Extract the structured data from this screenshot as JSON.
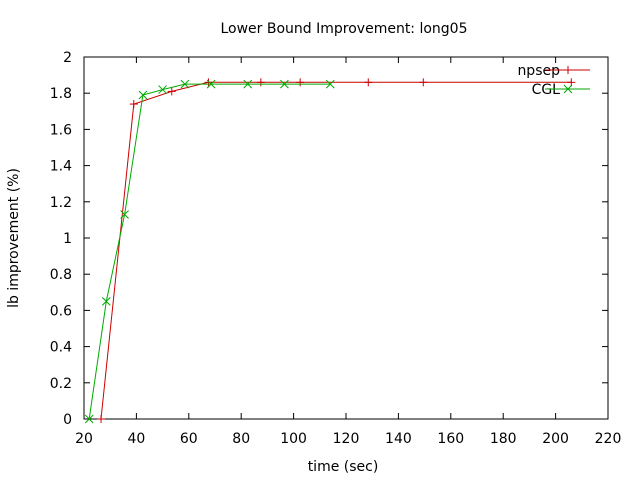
{
  "chart_data": {
    "type": "line",
    "title": "Lower Bound Improvement: long05",
    "xlabel": "time (sec)",
    "ylabel": "lb improvement (%)",
    "xlim": [
      20,
      220
    ],
    "ylim": [
      0,
      2
    ],
    "xticks": [
      20,
      40,
      60,
      80,
      100,
      120,
      140,
      160,
      180,
      200,
      220
    ],
    "yticks": [
      0,
      0.2,
      0.4,
      0.6,
      0.8,
      1,
      1.2,
      1.4,
      1.6,
      1.8,
      2
    ],
    "ytick_labels": [
      "0",
      "0.2",
      "0.4",
      "0.6",
      "0.8",
      "1",
      "1.2",
      "1.4",
      "1.6",
      "1.8",
      "2"
    ],
    "grid": false,
    "legend_position": "top-right",
    "series": [
      {
        "name": "npsep",
        "color": "#cc0000",
        "marker": "plus",
        "x": [
          26.5,
          39,
          53.5,
          67.5,
          87.5,
          102.5,
          128.5,
          149.5,
          206
        ],
        "y": [
          0,
          1.74,
          1.81,
          1.86,
          1.86,
          1.86,
          1.86,
          1.86,
          1.86
        ]
      },
      {
        "name": "CGL",
        "color": "#00aa00",
        "marker": "cross",
        "x": [
          22,
          28.5,
          35.5,
          42.5,
          50,
          58.5,
          68.5,
          82.5,
          96.5,
          114
        ],
        "y": [
          0,
          0.65,
          1.13,
          1.79,
          1.82,
          1.85,
          1.85,
          1.85,
          1.85,
          1.85
        ]
      }
    ]
  }
}
